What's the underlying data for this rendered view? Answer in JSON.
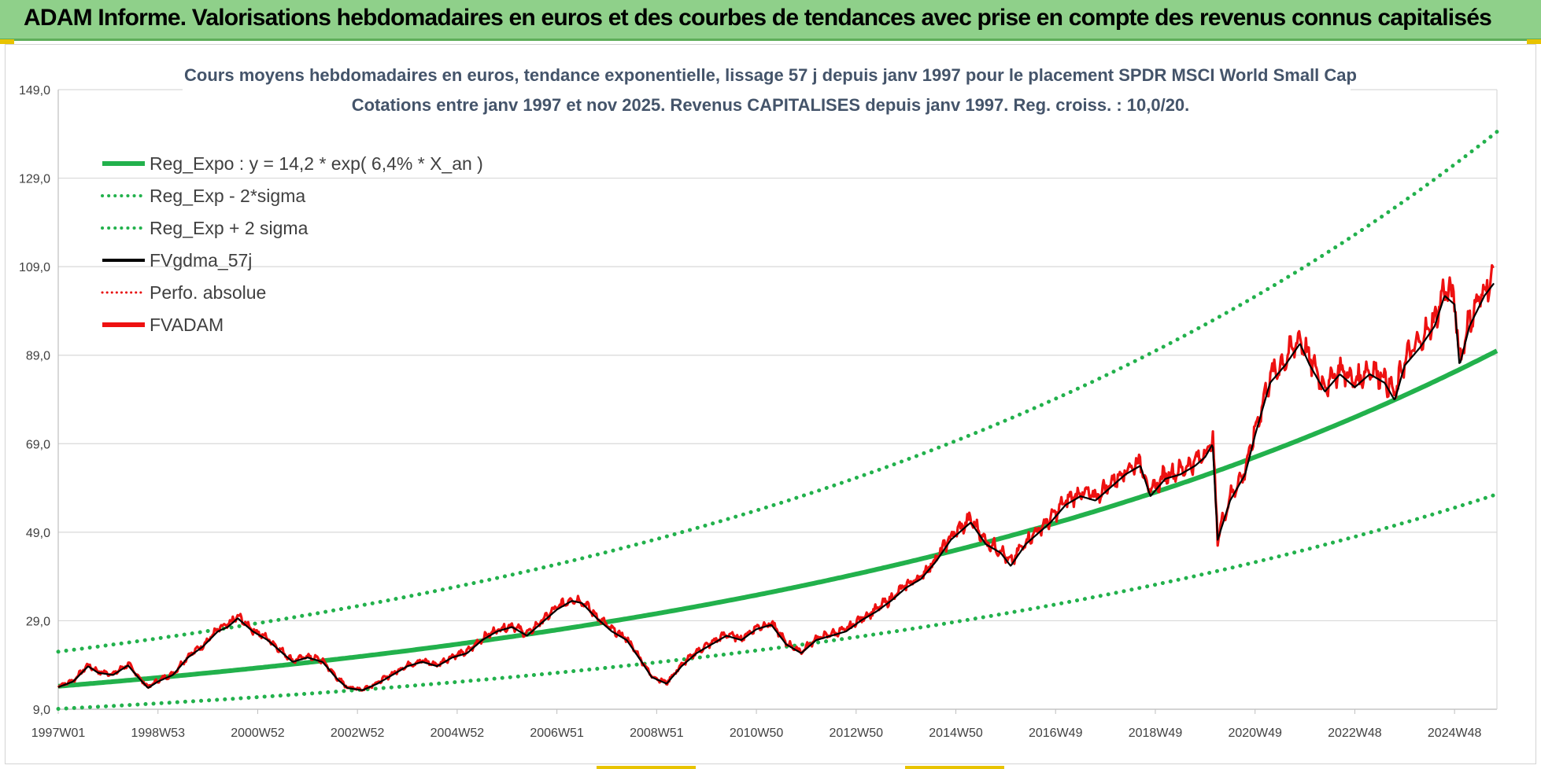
{
  "page_title": "ADAM Informe. Valorisations hebdomadaires en euros et des courbes de tendances avec prise en compte des revenus connus capitalisés",
  "colors": {
    "banner": "#8fd08a",
    "trend": "#22b14c",
    "trend_band": "#22b14c",
    "fvgdma": "#000000",
    "perfo": "#e81010",
    "fvadam": "#ee1111",
    "grid": "#d9d9d9"
  },
  "chart_data": {
    "type": "line",
    "title": "Cours moyens hebdomadaires en euros, tendance exponentielle, lissage 57 j depuis janv 1997  pour le placement SPDR MSCI World Small Cap",
    "subtitle": "Cotations entre janv 1997 et nov 2025. Revenus CAPITALISES depuis janv 1997. Reg. croiss. : 10,0/20.",
    "xlabel": "",
    "ylabel": "",
    "x_tick_labels": [
      "1997W01",
      "1998W53",
      "2000W52",
      "2002W52",
      "2004W52",
      "2006W51",
      "2008W51",
      "2010W50",
      "2012W50",
      "2014W50",
      "2016W49",
      "2018W49",
      "2020W49",
      "2022W48",
      "2024W48"
    ],
    "x_tick_years": [
      1997.0,
      1999.0,
      2001.0,
      2003.0,
      2005.0,
      2007.0,
      2009.0,
      2011.0,
      2013.0,
      2015.0,
      2017.0,
      2019.0,
      2021.0,
      2023.0,
      2025.0
    ],
    "xlim": [
      1997.0,
      2025.85
    ],
    "y_ticks": [
      9,
      29,
      49,
      69,
      89,
      109,
      129,
      149
    ],
    "y_tick_labels": [
      "9,0",
      "29,0",
      "49,0",
      "69,0",
      "89,0",
      "109,0",
      "129,0",
      "149,0"
    ],
    "ylim": [
      9,
      149
    ],
    "grid": true,
    "legend_position": "top-left",
    "trend_model": {
      "a": 14.2,
      "rate": 0.064,
      "band_factor_low": 0.64,
      "band_factor_high": 1.55
    },
    "series": [
      {
        "name": "Reg_Expo : y = 14,2 * exp( 6,4% *  X_an )",
        "style": "solid-thick",
        "color": "#22b14c",
        "kind": "trend"
      },
      {
        "name": "Reg_Exp - 2*sigma",
        "style": "dotted",
        "color": "#22b14c",
        "kind": "trend_low"
      },
      {
        "name": "Reg_Exp + 2 sigma",
        "style": "dotted",
        "color": "#22b14c",
        "kind": "trend_high"
      },
      {
        "name": "FVgdma_57j",
        "style": "solid",
        "color": "#000000",
        "kind": "smooth"
      },
      {
        "name": "Perfo. absolue",
        "style": "dotted",
        "color": "#e81010",
        "kind": "perfo"
      },
      {
        "name": "FVADAM",
        "style": "solid-thick",
        "color": "#ee1111",
        "kind": "price"
      }
    ],
    "price_points": [
      [
        1997.0,
        14.2
      ],
      [
        1997.3,
        15.5
      ],
      [
        1997.6,
        19.0
      ],
      [
        1997.8,
        17.5
      ],
      [
        1998.1,
        17.0
      ],
      [
        1998.4,
        19.2
      ],
      [
        1998.6,
        16.5
      ],
      [
        1998.8,
        14.0
      ],
      [
        1999.0,
        15.5
      ],
      [
        1999.3,
        17.0
      ],
      [
        1999.6,
        21.0
      ],
      [
        1999.9,
        23.5
      ],
      [
        2000.2,
        27.0
      ],
      [
        2000.4,
        28.0
      ],
      [
        2000.6,
        30.0
      ],
      [
        2000.9,
        27.0
      ],
      [
        2001.2,
        25.0
      ],
      [
        2001.5,
        22.0
      ],
      [
        2001.7,
        20.0
      ],
      [
        2002.0,
        21.0
      ],
      [
        2002.3,
        20.0
      ],
      [
        2002.6,
        16.0
      ],
      [
        2002.8,
        14.0
      ],
      [
        2003.1,
        13.5
      ],
      [
        2003.4,
        15.0
      ],
      [
        2003.7,
        17.0
      ],
      [
        2004.0,
        19.0
      ],
      [
        2004.3,
        20.0
      ],
      [
        2004.6,
        19.0
      ],
      [
        2004.9,
        21.0
      ],
      [
        2005.2,
        22.0
      ],
      [
        2005.5,
        25.0
      ],
      [
        2005.8,
        27.0
      ],
      [
        2006.1,
        28.0
      ],
      [
        2006.4,
        26.0
      ],
      [
        2006.7,
        29.0
      ],
      [
        2007.0,
        32.0
      ],
      [
        2007.3,
        34.0
      ],
      [
        2007.5,
        33.5
      ],
      [
        2007.8,
        30.0
      ],
      [
        2008.1,
        27.0
      ],
      [
        2008.4,
        25.0
      ],
      [
        2008.7,
        20.0
      ],
      [
        2008.9,
        16.5
      ],
      [
        2009.2,
        15.0
      ],
      [
        2009.5,
        19.0
      ],
      [
        2009.8,
        22.0
      ],
      [
        2010.1,
        24.0
      ],
      [
        2010.4,
        26.0
      ],
      [
        2010.7,
        25.0
      ],
      [
        2011.0,
        27.5
      ],
      [
        2011.3,
        28.5
      ],
      [
        2011.6,
        24.0
      ],
      [
        2011.9,
        22.0
      ],
      [
        2012.2,
        25.0
      ],
      [
        2012.5,
        26.0
      ],
      [
        2012.8,
        27.0
      ],
      [
        2013.1,
        29.5
      ],
      [
        2013.4,
        31.5
      ],
      [
        2013.7,
        34.0
      ],
      [
        2014.0,
        37.0
      ],
      [
        2014.3,
        39.0
      ],
      [
        2014.6,
        43.0
      ],
      [
        2014.9,
        48.0
      ],
      [
        2015.1,
        50.0
      ],
      [
        2015.3,
        52.0
      ],
      [
        2015.6,
        47.0
      ],
      [
        2015.9,
        45.0
      ],
      [
        2016.1,
        42.0
      ],
      [
        2016.4,
        47.0
      ],
      [
        2016.7,
        50.0
      ],
      [
        2016.9,
        52.0
      ],
      [
        2017.2,
        56.0
      ],
      [
        2017.5,
        58.0
      ],
      [
        2017.8,
        57.0
      ],
      [
        2018.1,
        60.0
      ],
      [
        2018.4,
        63.0
      ],
      [
        2018.7,
        65.0
      ],
      [
        2018.9,
        58.0
      ],
      [
        2019.2,
        62.0
      ],
      [
        2019.5,
        63.0
      ],
      [
        2019.8,
        65.0
      ],
      [
        2020.0,
        67.0
      ],
      [
        2020.15,
        70.0
      ],
      [
        2020.25,
        48.0
      ],
      [
        2020.5,
        57.0
      ],
      [
        2020.8,
        63.0
      ],
      [
        2021.0,
        72.0
      ],
      [
        2021.3,
        84.0
      ],
      [
        2021.6,
        88.0
      ],
      [
        2021.9,
        93.0
      ],
      [
        2022.1,
        88.0
      ],
      [
        2022.4,
        82.0
      ],
      [
        2022.7,
        86.0
      ],
      [
        2023.0,
        83.0
      ],
      [
        2023.3,
        86.0
      ],
      [
        2023.6,
        84.0
      ],
      [
        2023.8,
        80.0
      ],
      [
        2024.0,
        88.0
      ],
      [
        2024.3,
        92.0
      ],
      [
        2024.6,
        97.0
      ],
      [
        2024.8,
        104.0
      ],
      [
        2025.0,
        102.0
      ],
      [
        2025.1,
        88.0
      ],
      [
        2025.3,
        97.0
      ],
      [
        2025.6,
        104.0
      ],
      [
        2025.8,
        107.0
      ]
    ]
  }
}
